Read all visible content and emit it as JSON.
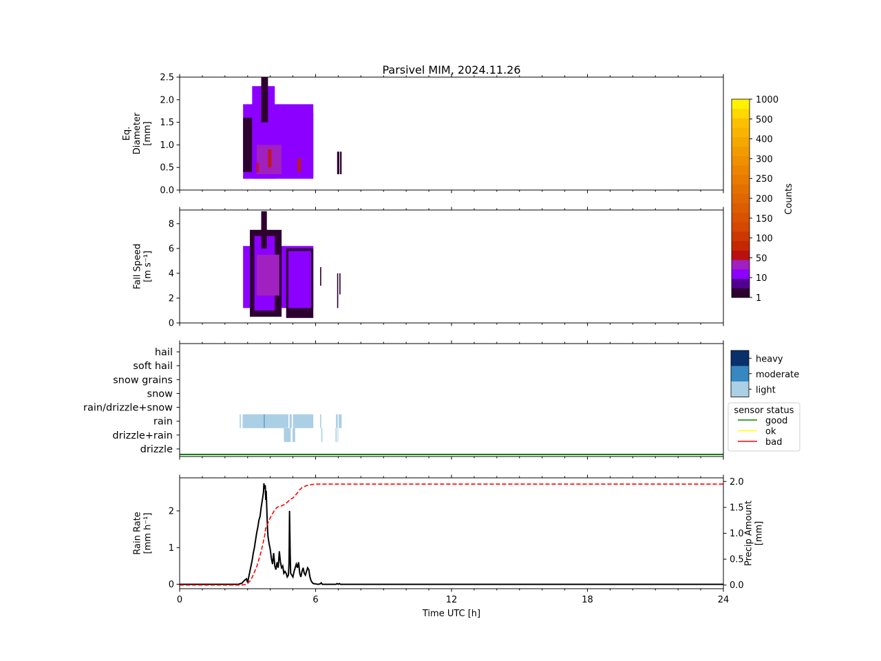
{
  "figure": {
    "title": "Parsivel MIM, 2024.11.26"
  },
  "chart_data": [
    {
      "id": "diameter",
      "type": "heatmap",
      "ylabel": [
        "Eq.",
        "Diameter",
        "[mm]"
      ],
      "xlim": [
        0,
        24
      ],
      "ylim": [
        0,
        2.5
      ],
      "yticks": [
        0.0,
        0.5,
        1.0,
        1.5,
        2.0,
        2.5
      ],
      "ytick_labels": [
        "0.0",
        "0.5",
        "1.0",
        "1.5",
        "2.0",
        "2.5"
      ],
      "xticks_major": [
        0,
        6,
        12,
        18,
        24
      ],
      "xticks_minor_step": 1,
      "precip_periods_h": [
        [
          2.8,
          5.9
        ],
        [
          6.95,
          7.05
        ],
        [
          7.05,
          7.15
        ]
      ],
      "peak_count_range": "50-150",
      "regions": [
        {
          "t0": 2.8,
          "t1": 5.9,
          "y0": 0.25,
          "y1": 1.9,
          "level": "10"
        },
        {
          "t0": 2.8,
          "t1": 3.2,
          "y0": 0.4,
          "y1": 1.6,
          "level": "1"
        },
        {
          "t0": 3.2,
          "t1": 4.2,
          "y0": 0.25,
          "y1": 2.3,
          "level": "10"
        },
        {
          "t0": 3.6,
          "t1": 3.9,
          "y0": 1.5,
          "y1": 2.5,
          "level": "1"
        },
        {
          "t0": 3.4,
          "t1": 4.5,
          "y0": 0.35,
          "y1": 1.0,
          "level": "50"
        },
        {
          "t0": 3.9,
          "t1": 4.05,
          "y0": 0.5,
          "y1": 0.9,
          "level": "100"
        },
        {
          "t0": 3.4,
          "t1": 3.5,
          "y0": 0.4,
          "y1": 0.6,
          "level": "100"
        },
        {
          "t0": 4.7,
          "t1": 5.9,
          "y0": 0.3,
          "y1": 1.7,
          "level": "10"
        },
        {
          "t0": 5.2,
          "t1": 5.35,
          "y0": 0.4,
          "y1": 0.7,
          "level": "100"
        },
        {
          "t0": 6.95,
          "t1": 7.05,
          "y0": 0.35,
          "y1": 0.85,
          "level": "1"
        },
        {
          "t0": 7.08,
          "t1": 7.15,
          "y0": 0.35,
          "y1": 0.85,
          "level": "1"
        }
      ]
    },
    {
      "id": "fallspeed",
      "type": "heatmap",
      "ylabel": [
        "Fall Speed",
        "[m s⁻¹]"
      ],
      "xlim": [
        0,
        24
      ],
      "ylim": [
        0,
        9.1
      ],
      "yticks": [
        0,
        2,
        4,
        6,
        8
      ],
      "ytick_labels": [
        "0",
        "2",
        "4",
        "6",
        "8"
      ],
      "xticks_major": [
        0,
        6,
        12,
        18,
        24
      ],
      "xticks_minor_step": 1,
      "regions": [
        {
          "t0": 2.8,
          "t1": 5.9,
          "y0": 1.2,
          "y1": 6.2,
          "level": "10"
        },
        {
          "t0": 3.1,
          "t1": 4.5,
          "y0": 0.5,
          "y1": 7.5,
          "level": "1"
        },
        {
          "t0": 3.3,
          "t1": 4.2,
          "y0": 1.0,
          "y1": 7.0,
          "level": "10"
        },
        {
          "t0": 3.6,
          "t1": 3.85,
          "y0": 6.0,
          "y1": 9.0,
          "level": "1"
        },
        {
          "t0": 3.4,
          "t1": 4.4,
          "y0": 2.2,
          "y1": 5.5,
          "level": "50"
        },
        {
          "t0": 4.7,
          "t1": 5.9,
          "y0": 0.4,
          "y1": 6.0,
          "level": "1"
        },
        {
          "t0": 4.8,
          "t1": 5.8,
          "y0": 1.2,
          "y1": 5.8,
          "level": "10"
        },
        {
          "t0": 6.2,
          "t1": 6.25,
          "y0": 3.0,
          "y1": 4.5,
          "level": "1"
        },
        {
          "t0": 6.95,
          "t1": 7.0,
          "y0": 1.2,
          "y1": 4.0,
          "level": "1"
        },
        {
          "t0": 7.05,
          "t1": 7.1,
          "y0": 2.3,
          "y1": 4.0,
          "level": "1"
        }
      ]
    },
    {
      "id": "weather-type",
      "type": "heatmap",
      "categories": [
        "drizzle",
        "drizzle+rain",
        "rain",
        "rain/drizzle+snow",
        "snow",
        "snow grains",
        "soft hail",
        "hail"
      ],
      "xlim": [
        0,
        24
      ],
      "xticks_major": [
        0,
        6,
        12,
        18,
        24
      ],
      "xticks_minor_step": 1,
      "intensity_levels": [
        "light",
        "moderate",
        "heavy"
      ],
      "intensity_colors": [
        "#abcfe5",
        "#3787c0",
        "#08306b"
      ],
      "segments": [
        {
          "category": "rain",
          "t0": 2.65,
          "t1": 2.7,
          "intensity": "light"
        },
        {
          "category": "rain",
          "t0": 2.78,
          "t1": 4.8,
          "intensity": "light"
        },
        {
          "category": "rain",
          "t0": 3.72,
          "t1": 3.75,
          "intensity": "moderate"
        },
        {
          "category": "rain",
          "t0": 4.85,
          "t1": 4.95,
          "intensity": "light"
        },
        {
          "category": "rain",
          "t0": 5.0,
          "t1": 5.9,
          "intensity": "light"
        },
        {
          "category": "rain",
          "t0": 6.2,
          "t1": 6.25,
          "intensity": "light"
        },
        {
          "category": "rain",
          "t0": 6.9,
          "t1": 6.98,
          "intensity": "light"
        },
        {
          "category": "rain",
          "t0": 7.02,
          "t1": 7.15,
          "intensity": "light"
        },
        {
          "category": "drizzle+rain",
          "t0": 4.6,
          "t1": 4.9,
          "intensity": "light"
        },
        {
          "category": "drizzle+rain",
          "t0": 4.98,
          "t1": 5.1,
          "intensity": "light"
        },
        {
          "category": "drizzle+rain",
          "t0": 6.25,
          "t1": 6.3,
          "intensity": "light"
        },
        {
          "category": "drizzle+rain",
          "t0": 6.88,
          "t1": 6.93,
          "intensity": "light"
        },
        {
          "category": "drizzle+rain",
          "t0": 6.97,
          "t1": 7.0,
          "intensity": "light"
        }
      ],
      "sensor_status": {
        "value": "good",
        "from_h": 0,
        "to_h": 24
      },
      "legend_intensity": [
        "heavy",
        "moderate",
        "light"
      ],
      "legend_status": {
        "title": "sensor status",
        "entries": [
          {
            "label": "good",
            "color": "#008000"
          },
          {
            "label": "ok",
            "color": "#ffff00"
          },
          {
            "label": "bad",
            "color": "#ff0000"
          }
        ]
      }
    },
    {
      "id": "rainrate",
      "type": "line",
      "ylabel": [
        "Rain Rate",
        "[mm h⁻¹]"
      ],
      "y2label": [
        "Precip Amount",
        "[mm]"
      ],
      "xlabel": "Time UTC [h]",
      "xlim": [
        0,
        24
      ],
      "ylim": [
        -0.12,
        2.9
      ],
      "y2lim": [
        -0.07,
        2.07
      ],
      "yticks": [
        0,
        1,
        2
      ],
      "y2ticks": [
        0.0,
        0.5,
        1.0,
        1.5,
        2.0
      ],
      "y2tick_labels": [
        "0.0",
        "0.5",
        "1.0",
        "1.5",
        "2.0"
      ],
      "xticks_major": [
        0,
        6,
        12,
        18,
        24
      ],
      "xtick_labels": [
        "0",
        "6",
        "12",
        "18",
        "24"
      ],
      "xticks_minor_step": 1,
      "series": [
        {
          "axis": "left",
          "color": "#000000",
          "style": "solid",
          "x": [
            0,
            2.6,
            2.75,
            2.85,
            2.95,
            3.0,
            3.05,
            3.1,
            3.15,
            3.2,
            3.25,
            3.3,
            3.35,
            3.4,
            3.45,
            3.5,
            3.55,
            3.6,
            3.65,
            3.7,
            3.72,
            3.75,
            3.78,
            3.8,
            3.82,
            3.85,
            3.88,
            3.9,
            3.95,
            4.0,
            4.05,
            4.1,
            4.15,
            4.2,
            4.25,
            4.3,
            4.35,
            4.4,
            4.45,
            4.5,
            4.55,
            4.6,
            4.65,
            4.7,
            4.75,
            4.8,
            4.83,
            4.85,
            4.88,
            4.9,
            4.95,
            5.0,
            5.05,
            5.1,
            5.15,
            5.2,
            5.25,
            5.3,
            5.35,
            5.4,
            5.45,
            5.5,
            5.55,
            5.6,
            5.65,
            5.7,
            5.75,
            5.8,
            5.85,
            5.9,
            6.0,
            6.1,
            6.2,
            6.25,
            6.3,
            6.9,
            6.95,
            7.0,
            7.05,
            7.1,
            7.2,
            24
          ],
          "y": [
            0,
            0,
            0.03,
            0.1,
            0.15,
            0.05,
            0.2,
            0.35,
            0.5,
            0.65,
            0.85,
            1.0,
            1.2,
            1.4,
            1.55,
            1.75,
            1.85,
            2.1,
            2.3,
            2.5,
            2.75,
            2.6,
            2.7,
            2.3,
            2.55,
            2.0,
            1.5,
            1.3,
            1.1,
            0.95,
            0.7,
            0.55,
            0.85,
            0.5,
            0.4,
            0.6,
            0.45,
            0.9,
            0.6,
            0.45,
            0.5,
            0.3,
            0.35,
            0.3,
            0.2,
            0.25,
            0.6,
            2.0,
            0.8,
            0.3,
            0.25,
            0.2,
            0.35,
            0.45,
            0.55,
            0.45,
            0.6,
            0.3,
            0.2,
            0.35,
            0.45,
            0.3,
            0.25,
            0.35,
            0.45,
            0.4,
            0.2,
            0.1,
            0.05,
            0.02,
            0.01,
            0.0,
            0.01,
            0.04,
            0.0,
            0.0,
            0.02,
            0.0,
            0.02,
            0.0,
            0.0,
            0.0
          ]
        },
        {
          "axis": "right",
          "color": "#ff0000",
          "style": "dashed",
          "x": [
            0,
            2.7,
            2.9,
            3.0,
            3.1,
            3.2,
            3.3,
            3.4,
            3.5,
            3.6,
            3.7,
            3.75,
            3.8,
            3.9,
            4.0,
            4.1,
            4.2,
            4.3,
            4.4,
            4.5,
            4.6,
            4.7,
            4.8,
            4.85,
            4.9,
            5.0,
            5.1,
            5.2,
            5.3,
            5.4,
            5.5,
            5.6,
            5.7,
            5.8,
            5.9,
            6.0,
            7.0,
            24
          ],
          "y": [
            0,
            0,
            0.01,
            0.03,
            0.08,
            0.15,
            0.25,
            0.35,
            0.5,
            0.65,
            0.85,
            0.95,
            1.1,
            1.2,
            1.3,
            1.38,
            1.45,
            1.5,
            1.52,
            1.53,
            1.55,
            1.58,
            1.62,
            1.64,
            1.66,
            1.68,
            1.73,
            1.78,
            1.84,
            1.88,
            1.9,
            1.92,
            1.93,
            1.94,
            1.945,
            1.95,
            1.95,
            1.95
          ]
        }
      ]
    }
  ],
  "colorbar": {
    "label": "Counts",
    "tick_labels": [
      "1",
      "10",
      "50",
      "100",
      "150",
      "200",
      "250",
      "300",
      "400",
      "500",
      "1000"
    ],
    "level_colors": {
      "1": "#2d0030",
      "10": "#8c00ff",
      "50": "#a020c0",
      "100": "#c01818",
      "150": "#d83c00"
    },
    "band_colors": [
      "#2d0030",
      "#520090",
      "#8c00ff",
      "#a020c0",
      "#bb1010",
      "#c42800",
      "#cc3800",
      "#d44800",
      "#d85200",
      "#dc5c00",
      "#e06600",
      "#e47000",
      "#e87a00",
      "#ec8400",
      "#f09000",
      "#f09c00",
      "#f4a800",
      "#f8b400",
      "#fcc000",
      "#fed800",
      "#fff200"
    ]
  }
}
